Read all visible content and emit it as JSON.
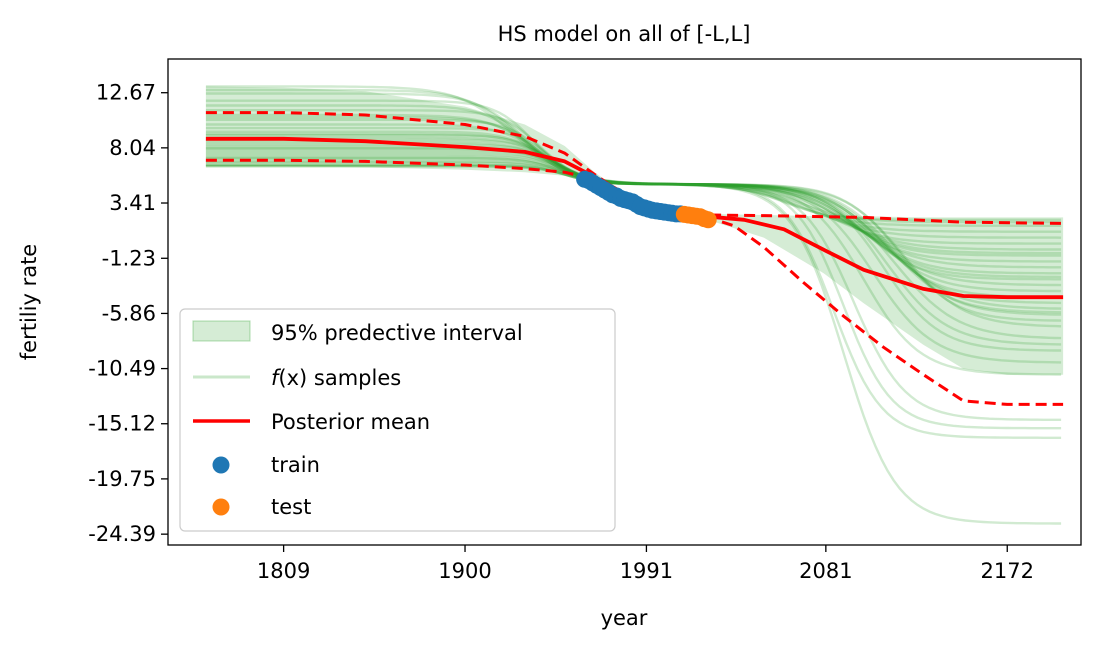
{
  "chart_data": {
    "type": "line",
    "title": "HS model on all of [-L,L]",
    "xlabel": "year",
    "ylabel": "fertiliy rate",
    "xlim": [
      1751,
      2209
    ],
    "ylim": [
      -25.3,
      15.5
    ],
    "xticks": [
      1809,
      1900,
      1991,
      2081,
      2172
    ],
    "yticks": [
      12.67,
      8.04,
      3.41,
      -1.23,
      -5.86,
      -10.49,
      -15.12,
      -19.75,
      -24.39
    ],
    "ytick_labels": [
      "12.67",
      "8.04",
      "3.41",
      "-1.23",
      "-5.86",
      "-10.49",
      "-15.12",
      "-19.75",
      "-24.39"
    ],
    "legend": {
      "placement": "lower-left",
      "entries": [
        {
          "label": "95% predective interval",
          "kind": "band",
          "color": "#2ca02c"
        },
        {
          "label_prefix": "f",
          "label_var": "(x)",
          "label_suffix": " samples",
          "kind": "sample-line",
          "color": "#2ca02c"
        },
        {
          "label": "Posterior mean",
          "kind": "mean-line",
          "color": "#ff0000"
        },
        {
          "label": "train",
          "kind": "marker",
          "color": "#1f77b4"
        },
        {
          "label": "test",
          "kind": "marker",
          "color": "#ff7f0e"
        }
      ]
    },
    "series": [
      {
        "name": "Posterior mean",
        "color": "#ff0000",
        "x": [
          1770,
          1809,
          1850,
          1900,
          1930,
          1950,
          1965,
          1980,
          1991,
          2005,
          2020,
          2040,
          2060,
          2081,
          2100,
          2130,
          2150,
          2172,
          2200
        ],
        "y": [
          8.8,
          8.8,
          8.6,
          8.1,
          7.7,
          6.9,
          5.6,
          4.2,
          2.9,
          2.4,
          2.3,
          2.0,
          1.2,
          -0.6,
          -2.2,
          -3.8,
          -4.4,
          -4.5,
          -4.5
        ]
      },
      {
        "name": "95% upper",
        "color": "#ff0000",
        "x": [
          1770,
          1809,
          1850,
          1900,
          1930,
          1950,
          1965,
          1980,
          1991,
          2005,
          2020,
          2050,
          2100,
          2150,
          2200
        ],
        "y": [
          11.0,
          11.0,
          10.8,
          10.0,
          9.0,
          7.6,
          5.8,
          4.1,
          2.9,
          2.5,
          2.4,
          2.35,
          2.2,
          1.8,
          1.7
        ]
      },
      {
        "name": "95% lower",
        "color": "#ff0000",
        "x": [
          1770,
          1809,
          1850,
          1900,
          1930,
          1950,
          1965,
          1980,
          1991,
          2005,
          2020,
          2035,
          2050,
          2070,
          2090,
          2110,
          2130,
          2150,
          2172,
          2200
        ],
        "y": [
          7.0,
          7.0,
          6.9,
          6.6,
          6.3,
          6.0,
          5.4,
          4.2,
          2.9,
          2.4,
          2.3,
          1.5,
          -0.3,
          -3.3,
          -6.1,
          -8.7,
          -11.0,
          -13.2,
          -13.5,
          -13.5
        ]
      },
      {
        "name": "train",
        "kind": "scatter",
        "color": "#1f77b4",
        "x": [
          1960,
          1962,
          1964,
          1966,
          1968,
          1970,
          1972,
          1974,
          1976,
          1978,
          1980,
          1982,
          1984,
          1986,
          1988,
          1990,
          1992,
          1994,
          1996,
          1998,
          2000,
          2002,
          2004,
          2006,
          2008
        ],
        "y": [
          5.4,
          5.3,
          5.1,
          4.9,
          4.7,
          4.5,
          4.3,
          4.1,
          4.0,
          3.8,
          3.7,
          3.6,
          3.5,
          3.3,
          3.1,
          3.0,
          2.9,
          2.8,
          2.75,
          2.7,
          2.65,
          2.6,
          2.55,
          2.5,
          2.5
        ]
      },
      {
        "name": "test",
        "kind": "scatter",
        "color": "#ff7f0e",
        "x": [
          2010,
          2012,
          2014,
          2016,
          2018,
          2020,
          2022
        ],
        "y": [
          2.45,
          2.4,
          2.35,
          2.3,
          2.25,
          2.1,
          2.0
        ]
      }
    ],
    "predictive_interval": {
      "x": [
        1770,
        1809,
        1850,
        1900,
        1930,
        1950,
        1965,
        1980,
        1991,
        2005,
        2020,
        2050,
        2080,
        2100,
        2130,
        2150,
        2172,
        2200
      ],
      "upper": [
        13.2,
        13.1,
        12.8,
        11.5,
        10.0,
        8.2,
        6.0,
        4.2,
        3.0,
        2.6,
        2.5,
        2.4,
        2.3,
        2.3,
        2.2,
        2.2,
        2.2,
        2.2
      ],
      "lower": [
        6.5,
        6.5,
        6.4,
        6.2,
        6.0,
        5.7,
        5.2,
        4.1,
        2.8,
        2.3,
        2.1,
        0.5,
        -2.5,
        -5.0,
        -8.5,
        -10.5,
        -11.0,
        -11.0
      ]
    },
    "samples": {
      "color": "#2ca02c",
      "curves": [
        {
          "start": 13.2,
          "end": 2.0,
          "mid": 1925,
          "w": 14,
          "mid2": 2060,
          "w2": 12
        },
        {
          "start": 12.6,
          "end": 1.5,
          "mid": 1930,
          "w": 12,
          "mid2": 2065,
          "w2": 14
        },
        {
          "start": 12.0,
          "end": 1.0,
          "mid": 1935,
          "w": 10,
          "mid2": 2070,
          "w2": 15
        },
        {
          "start": 11.6,
          "end": 0.5,
          "mid": 1932,
          "w": 11,
          "mid2": 2075,
          "w2": 16
        },
        {
          "start": 11.2,
          "end": 0.0,
          "mid": 1938,
          "w": 10,
          "mid2": 2080,
          "w2": 15
        },
        {
          "start": 10.8,
          "end": -0.5,
          "mid": 1936,
          "w": 12,
          "mid2": 2085,
          "w2": 16
        },
        {
          "start": 10.4,
          "end": -1.0,
          "mid": 1940,
          "w": 10,
          "mid2": 2090,
          "w2": 14
        },
        {
          "start": 10.0,
          "end": -1.5,
          "mid": 1939,
          "w": 11,
          "mid2": 2092,
          "w2": 15
        },
        {
          "start": 9.7,
          "end": -2.0,
          "mid": 1942,
          "w": 9,
          "mid2": 2095,
          "w2": 16
        },
        {
          "start": 9.4,
          "end": -2.5,
          "mid": 1941,
          "w": 10,
          "mid2": 2098,
          "w2": 15
        },
        {
          "start": 9.1,
          "end": -3.0,
          "mid": 1943,
          "w": 9,
          "mid2": 2100,
          "w2": 14
        },
        {
          "start": 8.9,
          "end": -3.5,
          "mid": 1944,
          "w": 10,
          "mid2": 2102,
          "w2": 16
        },
        {
          "start": 8.7,
          "end": -4.0,
          "mid": 1945,
          "w": 9,
          "mid2": 2105,
          "w2": 15
        },
        {
          "start": 8.5,
          "end": -4.5,
          "mid": 1946,
          "w": 10,
          "mid2": 2108,
          "w2": 14
        },
        {
          "start": 8.3,
          "end": -5.0,
          "mid": 1947,
          "w": 9,
          "mid2": 2110,
          "w2": 15
        },
        {
          "start": 8.1,
          "end": -5.5,
          "mid": 1945,
          "w": 8,
          "mid2": 2112,
          "w2": 16
        },
        {
          "start": 7.9,
          "end": -6.0,
          "mid": 1948,
          "w": 9,
          "mid2": 2115,
          "w2": 15
        },
        {
          "start": 7.7,
          "end": -6.5,
          "mid": 1946,
          "w": 8,
          "mid2": 2118,
          "w2": 14
        },
        {
          "start": 7.5,
          "end": -7.0,
          "mid": 1949,
          "w": 9,
          "mid2": 2120,
          "w2": 15
        },
        {
          "start": 7.3,
          "end": -8.0,
          "mid": 1947,
          "w": 8,
          "mid2": 2115,
          "w2": 16
        },
        {
          "start": 7.1,
          "end": -9.0,
          "mid": 1950,
          "w": 9,
          "mid2": 2110,
          "w2": 14
        },
        {
          "start": 6.9,
          "end": -10.0,
          "mid": 1948,
          "w": 8,
          "mid2": 2105,
          "w2": 15
        },
        {
          "start": 6.8,
          "end": -11.0,
          "mid": 1951,
          "w": 9,
          "mid2": 2100,
          "w2": 14
        },
        {
          "start": 6.6,
          "end": -14.8,
          "mid": 1950,
          "w": 8,
          "mid2": 2095,
          "w2": 13
        },
        {
          "start": 6.5,
          "end": -15.5,
          "mid": 1952,
          "w": 9,
          "mid2": 2090,
          "w2": 12
        },
        {
          "start": 6.5,
          "end": -16.3,
          "mid": 1951,
          "w": 8,
          "mid2": 2085,
          "w2": 12
        },
        {
          "start": 6.6,
          "end": -23.5,
          "mid": 1950,
          "w": 8,
          "mid2": 2090,
          "w2": 13
        },
        {
          "start": 12.9,
          "end": 1.8,
          "mid": 1928,
          "w": 13,
          "mid2": 2068,
          "w2": 13
        },
        {
          "start": 10.6,
          "end": -0.8,
          "mid": 1937,
          "w": 11,
          "mid2": 2088,
          "w2": 15
        },
        {
          "start": 9.2,
          "end": -2.8,
          "mid": 1942,
          "w": 10,
          "mid2": 2099,
          "w2": 15
        },
        {
          "start": 8.0,
          "end": -5.8,
          "mid": 1946,
          "w": 9,
          "mid2": 2113,
          "w2": 15
        },
        {
          "start": 7.2,
          "end": -8.5,
          "mid": 1948,
          "w": 9,
          "mid2": 2112,
          "w2": 15
        }
      ]
    }
  }
}
